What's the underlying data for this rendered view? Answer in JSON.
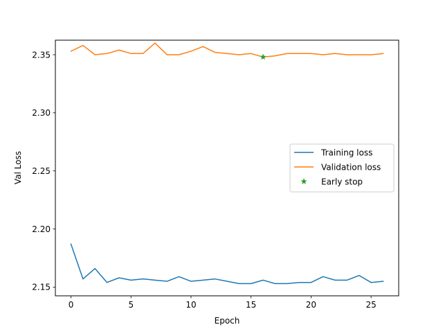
{
  "chart_data": {
    "type": "line",
    "title": "",
    "xlabel": "Epoch",
    "ylabel": "Val Loss",
    "xlim": [
      -1.3,
      27.3
    ],
    "ylim": [
      2.1425,
      2.3625
    ],
    "xticks": [
      0,
      5,
      10,
      15,
      20,
      25
    ],
    "yticks": [
      2.15,
      2.2,
      2.25,
      2.3,
      2.35
    ],
    "ytick_labels": [
      "2.15",
      "2.20",
      "2.25",
      "2.30",
      "2.35"
    ],
    "grid": false,
    "legend_position": "center-right",
    "series": [
      {
        "name": "Training loss",
        "color": "#1f77b4",
        "kind": "line",
        "x": [
          0,
          1,
          2,
          3,
          4,
          5,
          6,
          7,
          8,
          9,
          10,
          11,
          12,
          13,
          14,
          15,
          16,
          17,
          18,
          19,
          20,
          21,
          22,
          23,
          24,
          25,
          26
        ],
        "values": [
          2.187,
          2.157,
          2.166,
          2.154,
          2.158,
          2.156,
          2.157,
          2.156,
          2.155,
          2.159,
          2.155,
          2.156,
          2.157,
          2.155,
          2.153,
          2.153,
          2.156,
          2.153,
          2.153,
          2.154,
          2.154,
          2.159,
          2.156,
          2.156,
          2.16,
          2.154,
          2.155
        ]
      },
      {
        "name": "Validation loss",
        "color": "#ff7f0e",
        "kind": "line",
        "x": [
          0,
          1,
          2,
          3,
          4,
          5,
          6,
          7,
          8,
          9,
          10,
          11,
          12,
          13,
          14,
          15,
          16,
          17,
          18,
          19,
          20,
          21,
          22,
          23,
          24,
          25,
          26
        ],
        "values": [
          2.353,
          2.358,
          2.35,
          2.351,
          2.354,
          2.351,
          2.351,
          2.36,
          2.35,
          2.35,
          2.353,
          2.357,
          2.352,
          2.351,
          2.35,
          2.351,
          2.348,
          2.349,
          2.351,
          2.351,
          2.351,
          2.35,
          2.351,
          2.35,
          2.35,
          2.35,
          2.351
        ]
      },
      {
        "name": "Early stop",
        "color": "#2ca02c",
        "kind": "marker",
        "marker": "star",
        "x": [
          16
        ],
        "values": [
          2.348
        ]
      }
    ]
  }
}
